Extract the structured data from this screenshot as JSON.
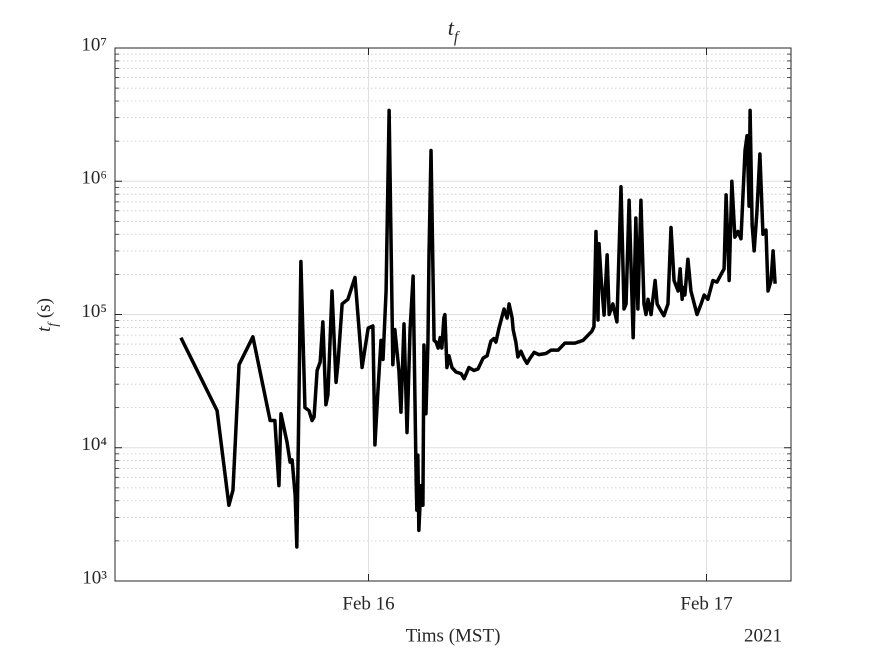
{
  "chart_data": {
    "type": "line",
    "title": "t_f",
    "ylabel": "t_f (s)",
    "xlabel": "Tims (MST)",
    "x_secondary_label": "2021",
    "yscale": "log",
    "grid": true,
    "minor_grid": true,
    "color": "#000000",
    "xlim": [
      15.25,
      17.25
    ],
    "xticks": [
      {
        "value": 16,
        "label": "Feb 16"
      },
      {
        "value": 17,
        "label": "Feb 17"
      }
    ],
    "ylim": [
      1000,
      10000000
    ],
    "yticks": [
      {
        "value": 1000,
        "label": "10³"
      },
      {
        "value": 10000,
        "label": "10⁴"
      },
      {
        "value": 100000,
        "label": "10⁵"
      },
      {
        "value": 1000000,
        "label": "10⁶"
      },
      {
        "value": 10000000,
        "label": "10⁷"
      }
    ],
    "x": [
      15.445,
      15.552,
      15.587,
      15.599,
      15.617,
      15.658,
      15.709,
      15.723,
      15.735,
      15.741,
      15.759,
      15.768,
      15.774,
      15.783,
      15.788,
      15.8,
      15.812,
      15.824,
      15.833,
      15.839,
      15.848,
      15.857,
      15.865,
      15.874,
      15.88,
      15.892,
      15.904,
      15.91,
      15.922,
      15.939,
      15.96,
      15.981,
      15.999,
      16.013,
      16.019,
      16.028,
      16.037,
      16.043,
      16.052,
      16.061,
      16.072,
      16.078,
      16.09,
      16.096,
      16.105,
      16.114,
      16.123,
      16.132,
      16.141,
      16.143,
      16.146,
      16.149,
      16.155,
      16.161,
      16.164,
      16.17,
      16.176,
      16.179,
      16.185,
      16.194,
      16.2,
      16.206,
      16.212,
      16.217,
      16.223,
      16.226,
      16.232,
      16.238,
      16.247,
      16.259,
      16.274,
      16.283,
      16.297,
      16.312,
      16.324,
      16.339,
      16.351,
      16.362,
      16.371,
      16.377,
      16.386,
      16.401,
      16.41,
      16.416,
      16.425,
      16.428,
      16.436,
      16.442,
      16.451,
      16.46,
      16.469,
      16.478,
      16.49,
      16.504,
      16.525,
      16.54,
      16.561,
      16.581,
      16.611,
      16.635,
      16.661,
      16.667,
      16.673,
      16.679,
      16.682,
      16.688,
      16.697,
      16.706,
      16.712,
      16.723,
      16.735,
      16.747,
      16.756,
      16.762,
      16.771,
      16.783,
      16.791,
      16.797,
      16.806,
      16.815,
      16.821,
      16.827,
      16.836,
      16.848,
      16.854,
      16.862,
      16.874,
      16.886,
      16.895,
      16.904,
      16.916,
      16.922,
      16.928,
      16.93,
      16.936,
      16.945,
      16.954,
      16.972,
      16.984,
      16.993,
      17.004,
      17.019,
      17.031,
      17.043,
      17.052,
      17.058,
      17.067,
      17.075,
      17.084,
      17.093,
      17.102,
      17.114,
      17.12,
      17.126,
      17.129,
      17.135,
      17.141,
      17.149,
      17.158,
      17.167,
      17.176,
      17.182,
      17.191,
      17.197,
      17.203
    ],
    "values": [
      67000,
      19000,
      3700,
      4800,
      42000,
      68000,
      16000,
      16000,
      5200,
      18000,
      11000,
      7800,
      8100,
      4400,
      1800,
      250000,
      20000,
      19000,
      16000,
      17000,
      38000,
      44000,
      88000,
      21000,
      25000,
      150000,
      31000,
      44000,
      120000,
      130000,
      190000,
      40000,
      79000,
      82000,
      10500,
      27000,
      64000,
      46000,
      150000,
      3400000,
      42000,
      77000,
      38000,
      18500,
      85000,
      13000,
      77000,
      194000,
      5700,
      3400,
      8800,
      2400,
      5200,
      3700,
      59000,
      18000,
      64000,
      280000,
      1700000,
      64000,
      62000,
      56000,
      67000,
      56000,
      94000,
      100000,
      40000,
      49000,
      40000,
      37000,
      36000,
      33000,
      40000,
      38000,
      39000,
      47000,
      49000,
      63000,
      66000,
      62000,
      79000,
      110000,
      94000,
      120000,
      94000,
      77000,
      62000,
      48000,
      53000,
      47000,
      43000,
      47000,
      52000,
      50000,
      51000,
      54000,
      54000,
      61000,
      61000,
      64000,
      75000,
      81000,
      420000,
      91000,
      340000,
      190000,
      99000,
      280000,
      100000,
      120000,
      88000,
      910000,
      110000,
      120000,
      720000,
      67000,
      530000,
      110000,
      720000,
      120000,
      100000,
      130000,
      100000,
      180000,
      120000,
      110000,
      98000,
      120000,
      450000,
      180000,
      150000,
      220000,
      130000,
      160000,
      140000,
      260000,
      150000,
      100000,
      120000,
      140000,
      130000,
      180000,
      175000,
      200000,
      220000,
      790000,
      180000,
      1000000,
      380000,
      420000,
      370000,
      1700000,
      2200000,
      650000,
      3400000,
      470000,
      300000,
      580000,
      1600000,
      400000,
      430000,
      150000,
      180000,
      300000,
      170000
    ]
  }
}
